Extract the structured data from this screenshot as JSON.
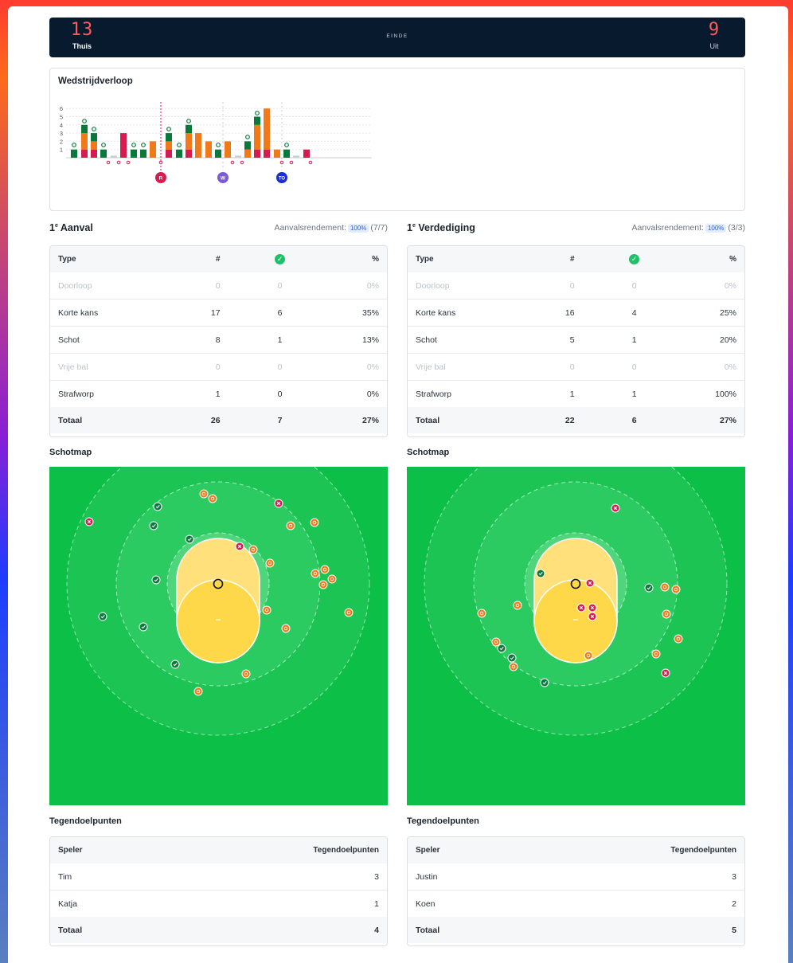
{
  "scoreboard": {
    "home_score": "13",
    "home_label": "Thuis",
    "status": "EINDE",
    "away_score": "9",
    "away_label": "Uit",
    "score_color": "#ff5a5a"
  },
  "match_progress": {
    "title": "Wedstrijdverloop",
    "y_ticks": [
      "1",
      "2",
      "3",
      "4",
      "5",
      "6"
    ],
    "markers": [
      {
        "label": "R",
        "color": "#d81b4f"
      },
      {
        "label": "W",
        "color": "#7b5bd6"
      },
      {
        "label": "TO",
        "color": "#1a2fd0"
      }
    ]
  },
  "attack": {
    "title": "1",
    "title_sup": "e",
    "title_rest": " Aanval",
    "rend_label": "Aanvalsrendement:",
    "rend_pct": "100%",
    "rend_frac": "(7/7)",
    "headers": {
      "type": "Type",
      "count": "#",
      "ok_icon": "✓",
      "pct": "%"
    },
    "rows": [
      {
        "type": "Doorloop",
        "count": "0",
        "ok": "0",
        "pct": "0%",
        "muted": true
      },
      {
        "type": "Korte kans",
        "count": "17",
        "ok": "6",
        "pct": "35%",
        "muted": false
      },
      {
        "type": "Schot",
        "count": "8",
        "ok": "1",
        "pct": "13%",
        "muted": false
      },
      {
        "type": "Vrije bal",
        "count": "0",
        "ok": "0",
        "pct": "0%",
        "muted": true
      },
      {
        "type": "Strafworp",
        "count": "1",
        "ok": "0",
        "pct": "0%",
        "muted": false
      }
    ],
    "total": {
      "type": "Totaal",
      "count": "26",
      "ok": "7",
      "pct": "27%"
    }
  },
  "defense": {
    "title": "1",
    "title_sup": "e",
    "title_rest": " Verdediging",
    "rend_label": "Aanvalsrendement:",
    "rend_pct": "100%",
    "rend_frac": "(3/3)",
    "headers": {
      "type": "Type",
      "count": "#",
      "ok_icon": "✓",
      "pct": "%"
    },
    "rows": [
      {
        "type": "Doorloop",
        "count": "0",
        "ok": "0",
        "pct": "0%",
        "muted": true
      },
      {
        "type": "Korte kans",
        "count": "16",
        "ok": "4",
        "pct": "25%",
        "muted": false
      },
      {
        "type": "Schot",
        "count": "5",
        "ok": "1",
        "pct": "20%",
        "muted": false
      },
      {
        "type": "Vrije bal",
        "count": "0",
        "ok": "0",
        "pct": "0%",
        "muted": true
      },
      {
        "type": "Strafworp",
        "count": "1",
        "ok": "1",
        "pct": "100%",
        "muted": false
      }
    ],
    "total": {
      "type": "Totaal",
      "count": "22",
      "ok": "6",
      "pct": "27%"
    }
  },
  "shotmap_title": "Schotmap",
  "colors": {
    "goal": "#0a7a3c",
    "miss": "#f07a1a",
    "blocked": "#d81b4f",
    "field": "#0bbf47",
    "zone": "#ffe07a"
  },
  "against": {
    "title": "Tegendoelpunten",
    "left": {
      "headers": {
        "player": "Speler",
        "goals": "Tegendoelpunten"
      },
      "rows": [
        {
          "player": "Tim",
          "goals": "3"
        },
        {
          "player": "Katja",
          "goals": "1"
        }
      ],
      "total": {
        "player": "Totaal",
        "goals": "4"
      }
    },
    "right": {
      "headers": {
        "player": "Speler",
        "goals": "Tegendoelpunten"
      },
      "rows": [
        {
          "player": "Justin",
          "goals": "3"
        },
        {
          "player": "Koen",
          "goals": "2"
        }
      ],
      "total": {
        "player": "Totaal",
        "goals": "5"
      }
    }
  }
}
